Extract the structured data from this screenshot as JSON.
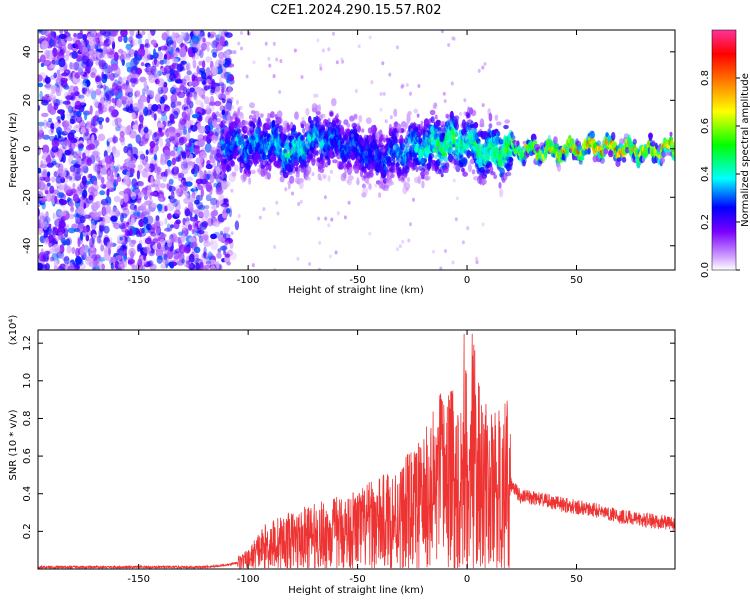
{
  "title": "C2E1.2024.290.15.57.R02",
  "chart_data": [
    {
      "type": "heatmap",
      "xlabel": "Height of straight line (km)",
      "ylabel": "Frequency (Hz)",
      "xlim": [
        -196,
        95
      ],
      "ylim": [
        -50,
        49
      ],
      "xticks": [
        -150,
        -100,
        -50,
        0,
        50
      ],
      "yticks": [
        -40,
        -20,
        0,
        20,
        40
      ],
      "colorbar": {
        "label": "Normalized spectral amplitude",
        "range": [
          0,
          1
        ],
        "ticks": [
          "0.0",
          "0.2",
          "0.4",
          "0.6",
          "0.8"
        ],
        "colors": [
          "#ffffff",
          "#cc99ff",
          "#7a00ff",
          "#0000ff",
          "#00ffff",
          "#00ff00",
          "#ffff00",
          "#ff8000",
          "#ff0000",
          "#ff3399"
        ]
      },
      "ridge": {
        "x": [
          -110,
          -100,
          -90,
          -80,
          -70,
          -60,
          -50,
          -40,
          -30,
          -20,
          -10,
          0,
          10,
          20,
          30,
          40,
          50,
          60,
          70,
          80,
          95
        ],
        "frequency": [
          2,
          1,
          3,
          -2,
          4,
          3,
          0,
          -4,
          -1,
          1,
          2,
          3,
          -2,
          0,
          -1,
          -1,
          0,
          1,
          0,
          -1,
          0
        ],
        "peak_amplitude": [
          0.35,
          0.38,
          0.4,
          0.45,
          0.42,
          0.35,
          0.33,
          0.32,
          0.38,
          0.45,
          0.55,
          0.48,
          0.5,
          0.6,
          0.75,
          0.8,
          0.85,
          0.9,
          0.82,
          0.8,
          0.75
        ]
      }
    },
    {
      "type": "line",
      "xlabel": "Height of straight line (km)",
      "ylabel": "SNR (10 * v/v)",
      "scale_label": "(x10⁴)",
      "xlim": [
        -196,
        95
      ],
      "ylim": [
        0,
        1.27
      ],
      "xticks": [
        -150,
        -100,
        -50,
        0,
        50
      ],
      "yticks": [
        "0.2",
        "0.4",
        "0.6",
        "0.8",
        "1.0",
        "1.2"
      ],
      "color": "#ee3333",
      "series": [
        {
          "x": [
            -196,
            -180,
            -160,
            -140,
            -120,
            -110,
            -100,
            -95,
            -90,
            -80,
            -70,
            -60,
            -50,
            -40,
            -30,
            -20,
            -15,
            -10,
            -5,
            0,
            2,
            5,
            10,
            15,
            20,
            25,
            30,
            40,
            50,
            60,
            70,
            80,
            90,
            95
          ],
          "y": [
            0.01,
            0.01,
            0.01,
            0.01,
            0.01,
            0.02,
            0.05,
            0.1,
            0.13,
            0.15,
            0.17,
            0.19,
            0.21,
            0.24,
            0.28,
            0.35,
            0.42,
            0.5,
            0.45,
            0.55,
            0.65,
            0.5,
            0.4,
            0.42,
            0.45,
            0.38,
            0.38,
            0.35,
            0.33,
            0.31,
            0.28,
            0.26,
            0.25,
            0.24
          ]
        }
      ]
    }
  ]
}
